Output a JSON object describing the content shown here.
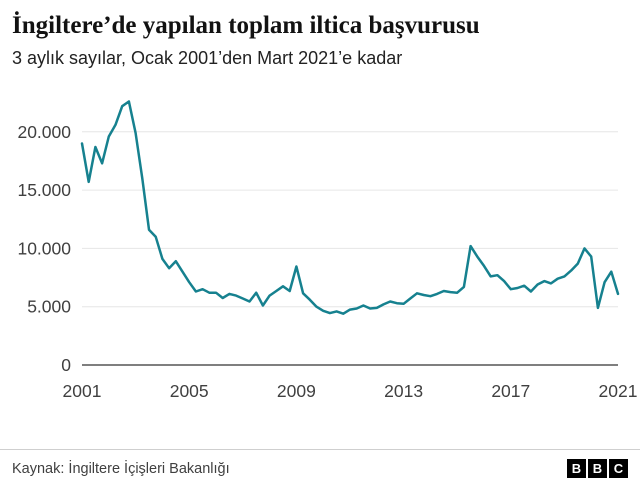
{
  "header": {
    "title": "İngiltere’de yapılan toplam iltica başvurusu",
    "subtitle": "3 aylık sayılar, Ocak 2001’den Mart 2021’e kadar"
  },
  "chart_data": {
    "type": "line",
    "title": "İngiltere’de yapılan toplam iltica başvurusu",
    "subtitle": "3 aylık sayılar, Ocak 2001’den Mart 2021’e kadar",
    "x_unit": "quarter",
    "x_start": "2001 Q1",
    "x_end": "2021 Q1",
    "values": [
      19000,
      15700,
      18700,
      17300,
      19600,
      20600,
      22200,
      22600,
      19900,
      16000,
      11600,
      11000,
      9100,
      8300,
      8900,
      8000,
      7100,
      6300,
      6500,
      6200,
      6200,
      5750,
      6100,
      5950,
      5700,
      5450,
      6200,
      5100,
      5950,
      6350,
      6750,
      6350,
      8450,
      6150,
      5600,
      5000,
      4650,
      4450,
      4600,
      4400,
      4750,
      4850,
      5100,
      4850,
      4900,
      5200,
      5450,
      5300,
      5250,
      5700,
      6150,
      6000,
      5900,
      6100,
      6350,
      6250,
      6200,
      6700,
      10200,
      9300,
      8500,
      7600,
      7700,
      7200,
      6500,
      6600,
      6800,
      6300,
      6900,
      7200,
      7000,
      7400,
      7600,
      8100,
      8700,
      10000,
      9300,
      4900,
      7100,
      8000,
      6100
    ],
    "ylim": [
      0,
      23500
    ],
    "y_ticks": [
      {
        "value": 0,
        "label": "0"
      },
      {
        "value": 5000,
        "label": "5.000"
      },
      {
        "value": 10000,
        "label": "10.000"
      },
      {
        "value": 15000,
        "label": "15.000"
      },
      {
        "value": 20000,
        "label": "20.000"
      }
    ],
    "x_ticks": [
      {
        "position": 0,
        "label": "2001"
      },
      {
        "position": 16,
        "label": "2005"
      },
      {
        "position": 32,
        "label": "2009"
      },
      {
        "position": 48,
        "label": "2013"
      },
      {
        "position": 64,
        "label": "2017"
      },
      {
        "position": 80,
        "label": "2021"
      }
    ],
    "grid": true,
    "legend": "none",
    "line_color": "#16818F",
    "grid_color": "#e6e6e6",
    "axis_color": "#333333"
  },
  "footer": {
    "source": "Kaynak: İngiltere İçişleri Bakanlığı",
    "logo_letters": [
      "B",
      "B",
      "C"
    ]
  }
}
